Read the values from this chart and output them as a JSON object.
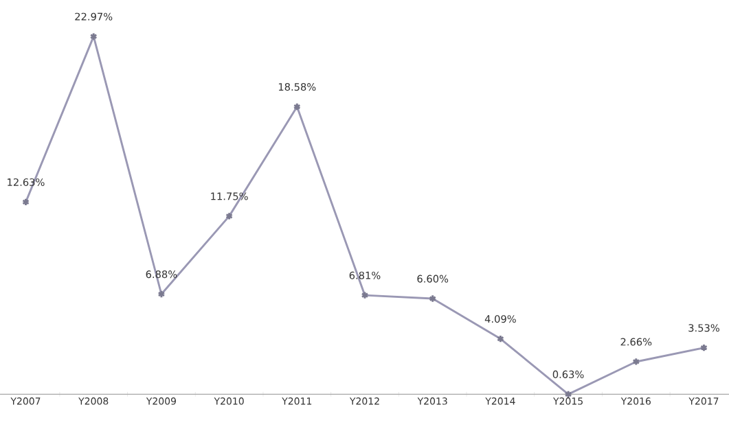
{
  "chart_data": {
    "type": "line",
    "categories": [
      "Y2007",
      "Y2008",
      "Y2009",
      "Y2010",
      "Y2011",
      "Y2012",
      "Y2013",
      "Y2014",
      "Y2015",
      "Y2016",
      "Y2017"
    ],
    "values": [
      12.63,
      22.97,
      6.88,
      11.75,
      18.58,
      6.81,
      6.6,
      4.09,
      0.63,
      2.66,
      3.53
    ],
    "value_labels": [
      "12.63%",
      "22.97%",
      "6.88%",
      "11.75%",
      "18.58%",
      "6.81%",
      "6.60%",
      "4.09%",
      "0.63%",
      "2.66%",
      "3.53%"
    ],
    "color": "#9a98b4",
    "marker": "cross",
    "grid": false
  }
}
